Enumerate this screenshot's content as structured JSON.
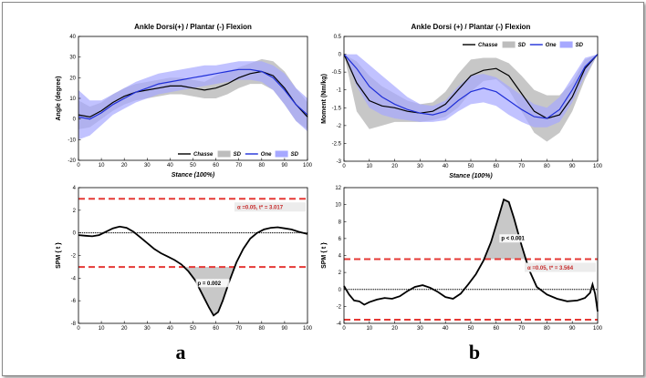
{
  "panel_labels": [
    "a",
    "b"
  ],
  "chart_data": [
    {
      "id": "angle",
      "type": "line",
      "title": "Ankle Dorsi(+) / Plantar (-) Flexion",
      "xlabel": "Stance (100%)",
      "ylabel": "Angle (degree)",
      "xlim": [
        0,
        100
      ],
      "ylim": [
        -20,
        40
      ],
      "xticks": [
        0,
        10,
        20,
        30,
        40,
        50,
        60,
        70,
        80,
        90,
        100
      ],
      "yticks": [
        -20,
        -10,
        0,
        10,
        20,
        30,
        40
      ],
      "legend_position": "bottom-right",
      "x": [
        0,
        5,
        10,
        15,
        20,
        25,
        30,
        35,
        40,
        45,
        50,
        55,
        60,
        65,
        70,
        75,
        80,
        85,
        90,
        95,
        100
      ],
      "series": [
        {
          "name": "Chasse",
          "color": "#000000",
          "values": [
            2,
            1,
            4,
            8,
            11,
            13,
            14,
            15,
            16,
            16,
            15,
            14,
            15,
            17,
            20,
            22,
            23,
            21,
            15,
            7,
            1
          ]
        },
        {
          "name": "SD",
          "band_of": 0,
          "color": "#bdbdbd",
          "lower": [
            -5,
            -4,
            0,
            4,
            7,
            9,
            10,
            11,
            12,
            12,
            11,
            10,
            10,
            12,
            15,
            17,
            17,
            14,
            7,
            -1,
            -5
          ],
          "upper": [
            9,
            6,
            8,
            12,
            15,
            17,
            18,
            19,
            20,
            20,
            19,
            18,
            21,
            23,
            25,
            27,
            29,
            28,
            23,
            15,
            8
          ]
        },
        {
          "name": "One",
          "color": "#1f2fd8",
          "values": [
            1,
            0,
            3,
            7,
            10,
            13,
            15,
            17,
            18,
            19,
            20,
            21,
            22,
            23,
            24,
            24,
            23,
            20,
            14,
            7,
            2
          ]
        },
        {
          "name": "SD",
          "band_of": 2,
          "color": "#a6a8ff",
          "lower": [
            -10,
            -8,
            -3,
            2,
            5,
            8,
            10,
            12,
            13,
            14,
            15,
            16,
            17,
            18,
            19,
            19,
            18,
            14,
            7,
            -1,
            -6
          ],
          "upper": [
            14,
            9,
            9,
            12,
            15,
            18,
            20,
            22,
            23,
            24,
            25,
            26,
            26,
            27,
            28,
            28,
            28,
            26,
            22,
            15,
            10
          ]
        }
      ]
    },
    {
      "id": "moment",
      "type": "line",
      "title": "Ankle Dorsi (+) / Plantar (-) Flexion",
      "xlabel": "Stance (100%)",
      "ylabel": "Moment (Nm/kg)",
      "xlim": [
        0,
        100
      ],
      "ylim": [
        -3,
        0.5
      ],
      "xticks": [
        0,
        10,
        20,
        30,
        40,
        50,
        60,
        70,
        80,
        90,
        100
      ],
      "yticks": [
        -3,
        -2.5,
        -2,
        -1.5,
        -1,
        -0.5,
        0,
        0.5
      ],
      "legend_position": "top-right",
      "x": [
        0,
        5,
        10,
        15,
        20,
        25,
        30,
        35,
        40,
        45,
        50,
        55,
        60,
        65,
        70,
        75,
        80,
        85,
        90,
        95,
        100
      ],
      "series": [
        {
          "name": "Chasse",
          "color": "#000000",
          "values": [
            0,
            -0.8,
            -1.3,
            -1.45,
            -1.5,
            -1.6,
            -1.65,
            -1.6,
            -1.4,
            -1.0,
            -0.6,
            -0.45,
            -0.4,
            -0.6,
            -1.1,
            -1.6,
            -1.8,
            -1.7,
            -1.2,
            -0.4,
            0
          ]
        },
        {
          "name": "SD",
          "band_of": 0,
          "color": "#bdbdbd",
          "lower": [
            0,
            -1.6,
            -2.1,
            -2.0,
            -1.9,
            -1.9,
            -1.9,
            -1.85,
            -1.75,
            -1.5,
            -1.05,
            -0.75,
            -0.7,
            -1.0,
            -1.6,
            -2.2,
            -2.45,
            -2.2,
            -1.6,
            -0.7,
            0
          ],
          "upper": [
            0,
            -0.2,
            -0.6,
            -0.9,
            -1.1,
            -1.3,
            -1.4,
            -1.35,
            -1.05,
            -0.55,
            -0.15,
            -0.1,
            -0.1,
            -0.25,
            -0.6,
            -1.0,
            -1.15,
            -1.15,
            -0.8,
            -0.15,
            0
          ]
        },
        {
          "name": "One",
          "color": "#1f2fd8",
          "values": [
            0,
            -0.4,
            -0.9,
            -1.2,
            -1.4,
            -1.55,
            -1.65,
            -1.7,
            -1.6,
            -1.3,
            -1.05,
            -0.95,
            -1.05,
            -1.3,
            -1.55,
            -1.75,
            -1.8,
            -1.55,
            -1.0,
            -0.35,
            0
          ]
        },
        {
          "name": "SD",
          "band_of": 2,
          "color": "#a6a8ff",
          "lower": [
            0,
            -0.9,
            -1.5,
            -1.7,
            -1.8,
            -1.85,
            -1.9,
            -1.9,
            -1.85,
            -1.6,
            -1.4,
            -1.35,
            -1.45,
            -1.7,
            -1.9,
            -2.05,
            -2.05,
            -1.9,
            -1.35,
            -0.6,
            0
          ],
          "upper": [
            0,
            0.0,
            -0.3,
            -0.6,
            -0.9,
            -1.2,
            -1.4,
            -1.45,
            -1.3,
            -0.9,
            -0.6,
            -0.55,
            -0.65,
            -0.9,
            -1.15,
            -1.4,
            -1.5,
            -1.2,
            -0.65,
            -0.1,
            0
          ]
        }
      ]
    },
    {
      "id": "spm_a",
      "type": "line",
      "xlabel": "",
      "ylabel": "SPM { t }",
      "xlim": [
        0,
        100
      ],
      "ylim": [
        -8,
        4
      ],
      "xticks": [
        0,
        10,
        20,
        30,
        40,
        50,
        60,
        70,
        80,
        90,
        100
      ],
      "yticks": [
        -8,
        -6,
        -4,
        -2,
        0,
        2,
        4
      ],
      "threshold": 3.017,
      "alpha_label": "α =0.05,    t* = 3.017",
      "p_label": "p = 0.002",
      "p_label_pos": [
        52,
        -4.6
      ],
      "cluster_sign": -1,
      "x": [
        0,
        3,
        6,
        9,
        12,
        15,
        18,
        21,
        24,
        27,
        30,
        33,
        36,
        39,
        42,
        45,
        48,
        51,
        54,
        57,
        59,
        61,
        63,
        66,
        69,
        72,
        75,
        78,
        81,
        84,
        87,
        90,
        93,
        96,
        100
      ],
      "series": [
        {
          "name": "SPM",
          "color": "#000000",
          "values": [
            -0.2,
            -0.25,
            -0.3,
            -0.2,
            0.1,
            0.4,
            0.55,
            0.45,
            0.1,
            -0.4,
            -0.9,
            -1.4,
            -1.8,
            -2.1,
            -2.4,
            -2.8,
            -3.4,
            -4.2,
            -5.4,
            -6.6,
            -7.3,
            -7.0,
            -6.0,
            -4.2,
            -2.6,
            -1.4,
            -0.5,
            0.0,
            0.3,
            0.45,
            0.5,
            0.4,
            0.3,
            0.1,
            -0.1
          ]
        }
      ]
    },
    {
      "id": "spm_b",
      "type": "line",
      "xlabel": "",
      "ylabel": "SPM { t }",
      "xlim": [
        0,
        100
      ],
      "ylim": [
        -4,
        12
      ],
      "xticks": [
        0,
        10,
        20,
        30,
        40,
        50,
        60,
        70,
        80,
        90,
        100
      ],
      "yticks": [
        -4,
        -2,
        0,
        2,
        4,
        6,
        8,
        10,
        12
      ],
      "threshold": 3.564,
      "alpha_label": "α =0.05,    t* = 3.564",
      "p_label": "p < 0.001",
      "p_label_pos": [
        62,
        5.8
      ],
      "cluster_sign": 1,
      "x": [
        0,
        2,
        4,
        6,
        8,
        10,
        13,
        16,
        19,
        22,
        25,
        28,
        31,
        34,
        37,
        40,
        43,
        46,
        49,
        52,
        55,
        58,
        61,
        63,
        65,
        67,
        70,
        73,
        76,
        80,
        84,
        88,
        92,
        95,
        97,
        98,
        99,
        100
      ],
      "series": [
        {
          "name": "SPM",
          "color": "#000000",
          "values": [
            0.4,
            -0.6,
            -1.3,
            -1.4,
            -1.8,
            -1.5,
            -1.2,
            -1.0,
            -1.1,
            -0.8,
            -0.2,
            0.3,
            0.5,
            0.2,
            -0.3,
            -0.9,
            -1.1,
            -0.5,
            0.6,
            1.8,
            3.4,
            5.6,
            8.6,
            10.6,
            10.3,
            8.4,
            5.2,
            2.3,
            0.3,
            -0.6,
            -1.1,
            -1.4,
            -1.3,
            -1.0,
            -0.4,
            0.6,
            -0.5,
            -2.6
          ]
        }
      ]
    }
  ]
}
